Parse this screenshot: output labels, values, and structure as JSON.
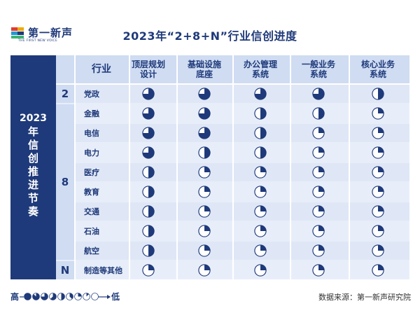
{
  "logo": {
    "name": "第一新声",
    "tagline": "THE FIRST NEW VOICE"
  },
  "title": "2023年“2+8+N”行业信创进度",
  "side_label": {
    "year": "2023",
    "chars": [
      "年",
      "信",
      "创",
      "推",
      "进",
      "节",
      "奏"
    ]
  },
  "header": {
    "industry": "行业",
    "columns": [
      [
        "顶层规划",
        "设计"
      ],
      [
        "基础设施",
        "底座"
      ],
      [
        "办公管理",
        "系统"
      ],
      [
        "一般业务",
        "系统"
      ],
      [
        "核心业务",
        "系统"
      ]
    ]
  },
  "groups": [
    {
      "label": "2",
      "rows": [
        0
      ]
    },
    {
      "label": "8",
      "rows": [
        1,
        2,
        3,
        4,
        5,
        6,
        7,
        8
      ]
    },
    {
      "label": "N",
      "rows": [
        9
      ]
    }
  ],
  "rows": [
    {
      "industry": "党政",
      "levels": [
        0.75,
        0.75,
        0.75,
        0.75,
        0.5
      ]
    },
    {
      "industry": "金融",
      "levels": [
        0.75,
        0.75,
        0.5,
        0.5,
        0.25
      ]
    },
    {
      "industry": "电信",
      "levels": [
        0.75,
        0.75,
        0.5,
        0.25,
        0.25
      ]
    },
    {
      "industry": "电力",
      "levels": [
        0.75,
        0.5,
        0.5,
        0.25,
        0.25
      ]
    },
    {
      "industry": "医疗",
      "levels": [
        0.5,
        0.25,
        0.25,
        0.25,
        0.25
      ]
    },
    {
      "industry": "教育",
      "levels": [
        0.5,
        0.25,
        0.25,
        0.25,
        0.25
      ]
    },
    {
      "industry": "交通",
      "levels": [
        0.5,
        0.25,
        0.25,
        0.25,
        0.25
      ]
    },
    {
      "industry": "石油",
      "levels": [
        0.5,
        0.25,
        0.25,
        0.25,
        0.25
      ]
    },
    {
      "industry": "航空",
      "levels": [
        0.5,
        0.25,
        0.25,
        0.25,
        0.25
      ]
    },
    {
      "industry": "制造等其他",
      "levels": [
        0.25,
        0.25,
        0.25,
        0.25,
        0.25
      ]
    }
  ],
  "legend": {
    "high": "高",
    "low": "低",
    "levels": [
      1,
      0.875,
      0.75,
      0.625,
      0.5,
      0.375,
      0.25,
      0.125,
      0
    ]
  },
  "source": "数据来源：第一新声研究院",
  "colors": {
    "navy": "#1f3a7a",
    "pie_fill": "#1f3a7a",
    "pie_bg": "#ffffff"
  }
}
